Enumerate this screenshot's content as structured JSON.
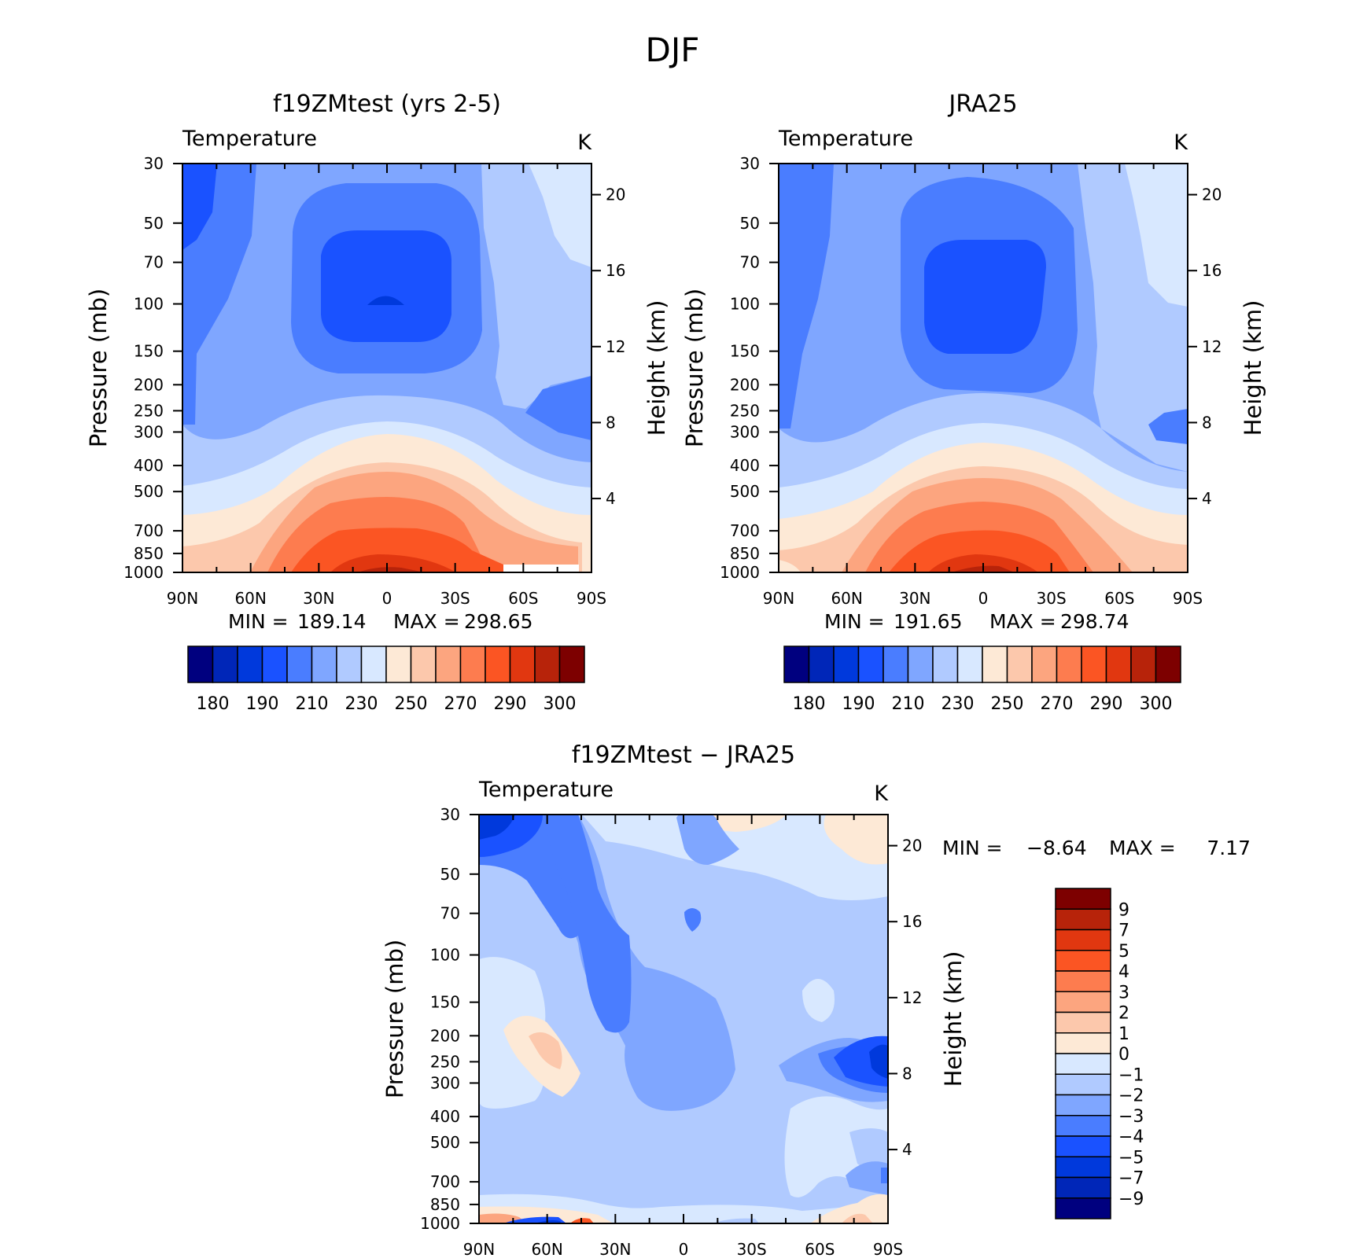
{
  "figure": {
    "title": "DJF"
  },
  "chart_data": [
    {
      "type": "heatmap",
      "title": "f19ZMtest (yrs 2-5)",
      "variable": "Temperature",
      "units": "K",
      "xlabel": "",
      "ylabel": "Pressure (mb)",
      "y2label": "Height (km)",
      "x_ticks": [
        "90N",
        "60N",
        "30N",
        "0",
        "30S",
        "60S",
        "90S"
      ],
      "x_values": [
        90,
        60,
        30,
        0,
        -30,
        -60,
        -90
      ],
      "y_ticks": [
        30,
        50,
        70,
        100,
        150,
        200,
        250,
        300,
        400,
        500,
        700,
        850,
        1000
      ],
      "y_scale": "log",
      "y2_ticks": [
        4,
        8,
        12,
        16,
        20
      ],
      "min_label": "MIN =",
      "min": "189.14",
      "max_label": "MAX =",
      "max": "298.65",
      "colorbar": {
        "orientation": "horizontal",
        "labels": [
          "180",
          "190",
          "210",
          "230",
          "250",
          "270",
          "290",
          "300"
        ],
        "colors": [
          "#00007f",
          "#0026b8",
          "#0039dc",
          "#1a52ff",
          "#4a7dff",
          "#7fa6ff",
          "#b0caff",
          "#d8e8ff",
          "#fde9d6",
          "#fcc8ac",
          "#fca57f",
          "#fd7c4f",
          "#fb5523",
          "#e13710",
          "#b7230a",
          "#7d0000"
        ]
      }
    },
    {
      "type": "heatmap",
      "title": "JRA25",
      "variable": "Temperature",
      "units": "K",
      "xlabel": "",
      "ylabel": "Pressure (mb)",
      "y2label": "Height (km)",
      "x_ticks": [
        "90N",
        "60N",
        "30N",
        "0",
        "30S",
        "60S",
        "90S"
      ],
      "x_values": [
        90,
        60,
        30,
        0,
        -30,
        -60,
        -90
      ],
      "y_ticks": [
        30,
        50,
        70,
        100,
        150,
        200,
        250,
        300,
        400,
        500,
        700,
        850,
        1000
      ],
      "y_scale": "log",
      "y2_ticks": [
        4,
        8,
        12,
        16,
        20
      ],
      "min_label": "MIN =",
      "min": "191.65",
      "max_label": "MAX =",
      "max": "298.74",
      "colorbar": {
        "orientation": "horizontal",
        "labels": [
          "180",
          "190",
          "210",
          "230",
          "250",
          "270",
          "290",
          "300"
        ],
        "colors": [
          "#00007f",
          "#0026b8",
          "#0039dc",
          "#1a52ff",
          "#4a7dff",
          "#7fa6ff",
          "#b0caff",
          "#d8e8ff",
          "#fde9d6",
          "#fcc8ac",
          "#fca57f",
          "#fd7c4f",
          "#fb5523",
          "#e13710",
          "#b7230a",
          "#7d0000"
        ]
      }
    },
    {
      "type": "heatmap",
      "title": "f19ZMtest − JRA25",
      "variable": "Temperature",
      "units": "K",
      "xlabel": "",
      "ylabel": "Pressure (mb)",
      "y2label": "Height (km)",
      "x_ticks": [
        "90N",
        "60N",
        "30N",
        "0",
        "30S",
        "60S",
        "90S"
      ],
      "x_values": [
        90,
        60,
        30,
        0,
        -30,
        -60,
        -90
      ],
      "y_ticks": [
        30,
        50,
        70,
        100,
        150,
        200,
        250,
        300,
        400,
        500,
        700,
        850,
        1000
      ],
      "y_scale": "log",
      "y2_ticks": [
        4,
        8,
        12,
        16,
        20
      ],
      "min_label": "MIN =",
      "min": "−8.64",
      "max_label": "MAX =",
      "max": "7.17",
      "colorbar": {
        "orientation": "vertical",
        "labels": [
          "9",
          "7",
          "5",
          "4",
          "3",
          "2",
          "1",
          "0",
          "−1",
          "−2",
          "−3",
          "−4",
          "−5",
          "−7",
          "−9"
        ],
        "colors": [
          "#7d0000",
          "#b7230a",
          "#e13710",
          "#fb5523",
          "#fd7c4f",
          "#fca57f",
          "#fcc8ac",
          "#fde9d6",
          "#d8e8ff",
          "#b0caff",
          "#7fa6ff",
          "#4a7dff",
          "#1a52ff",
          "#0039dc",
          "#0026b8",
          "#00007f"
        ]
      }
    }
  ]
}
